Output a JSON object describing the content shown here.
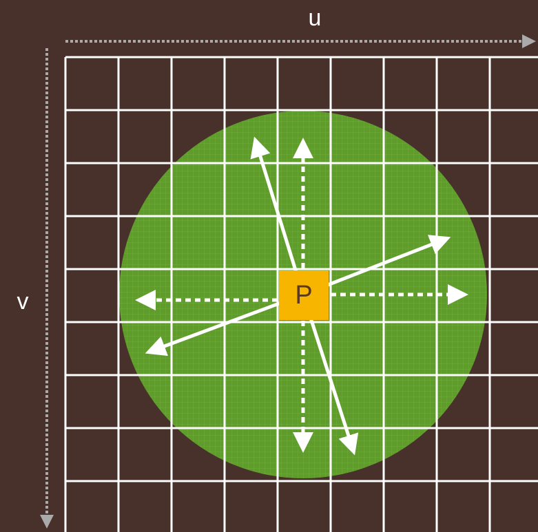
{
  "axes": {
    "u": "u",
    "v": "v"
  },
  "point": {
    "label": "P"
  }
}
